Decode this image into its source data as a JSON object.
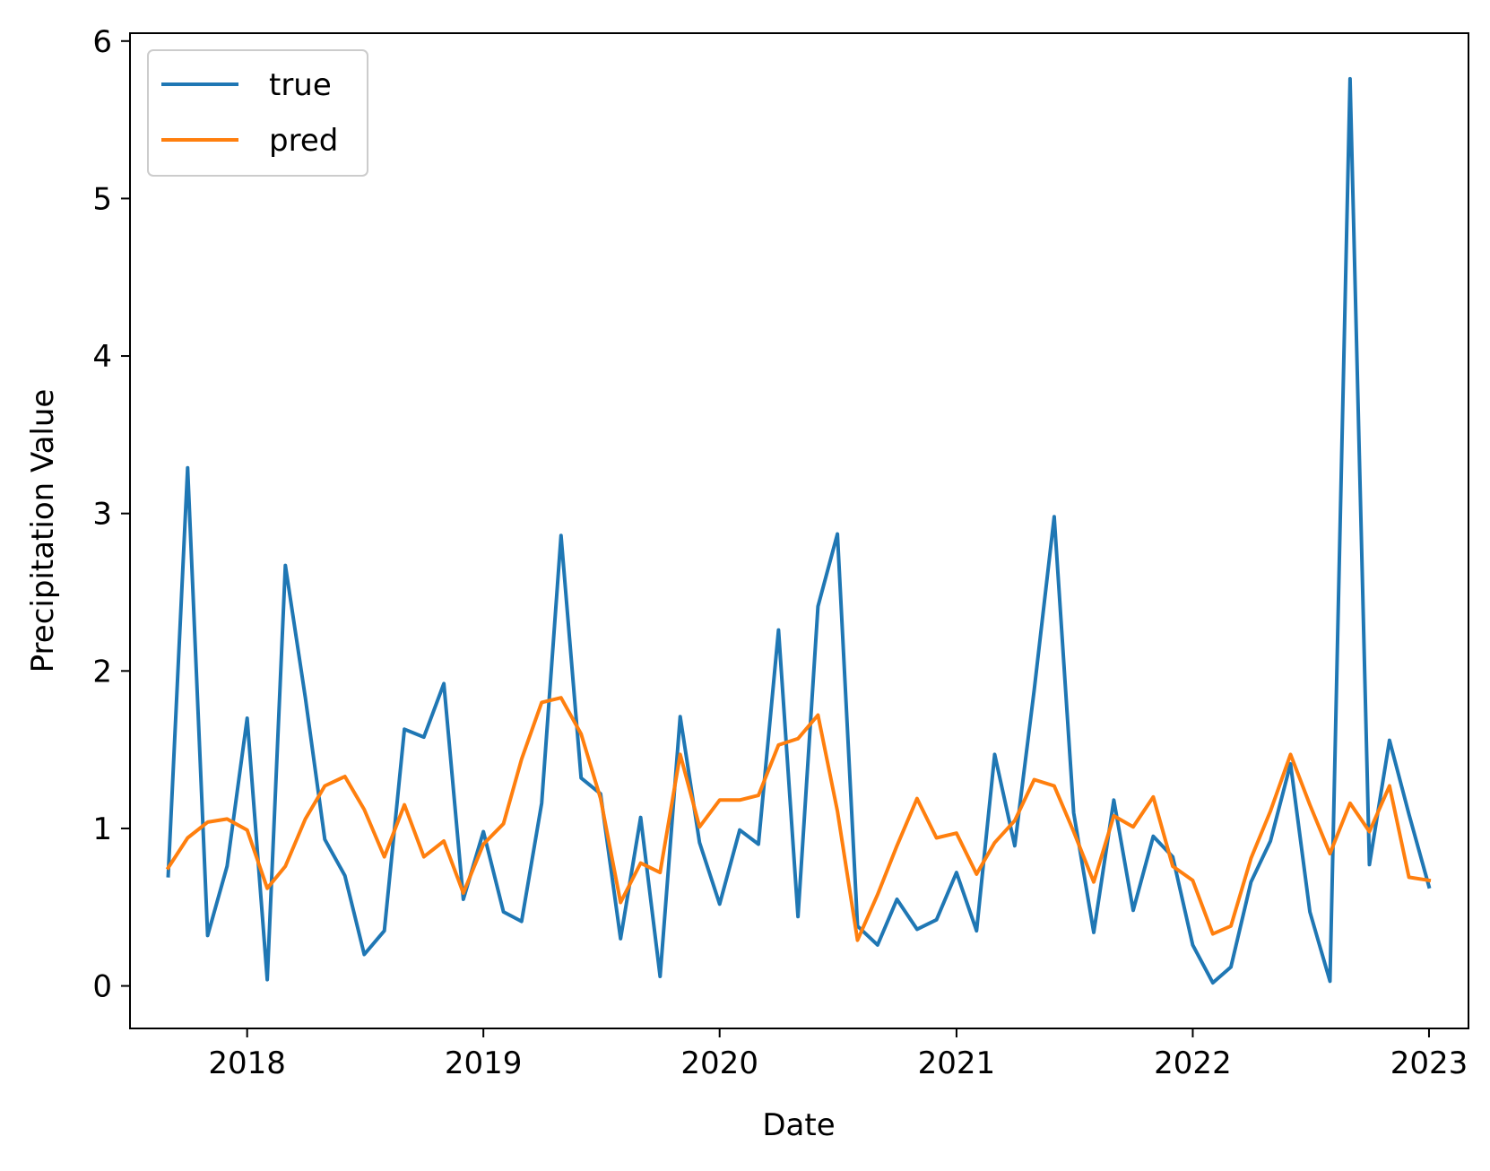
{
  "chart_data": {
    "type": "line",
    "title": "",
    "xlabel": "Date",
    "ylabel": "Precipitation Value",
    "x_ticks": [
      "2018",
      "2019",
      "2020",
      "2021",
      "2022",
      "2023"
    ],
    "y_ticks": [
      "0",
      "1",
      "2",
      "3",
      "4",
      "5",
      "6"
    ],
    "xlim": [
      "2017-07-04",
      "2023-03-03"
    ],
    "ylim": [
      -0.27,
      6.05
    ],
    "grid": false,
    "legend_position": "upper left",
    "x": [
      "2017-09-01",
      "2017-10-01",
      "2017-11-01",
      "2017-12-01",
      "2018-01-01",
      "2018-02-01",
      "2018-03-01",
      "2018-04-01",
      "2018-05-01",
      "2018-06-01",
      "2018-07-01",
      "2018-08-01",
      "2018-09-01",
      "2018-10-01",
      "2018-11-01",
      "2018-12-01",
      "2019-01-01",
      "2019-02-01",
      "2019-03-01",
      "2019-04-01",
      "2019-05-01",
      "2019-06-01",
      "2019-07-01",
      "2019-08-01",
      "2019-09-01",
      "2019-10-01",
      "2019-11-01",
      "2019-12-01",
      "2020-01-01",
      "2020-02-01",
      "2020-03-01",
      "2020-04-01",
      "2020-05-01",
      "2020-06-01",
      "2020-07-01",
      "2020-08-01",
      "2020-09-01",
      "2020-10-01",
      "2020-11-01",
      "2020-12-01",
      "2021-01-01",
      "2021-02-01",
      "2021-03-01",
      "2021-04-01",
      "2021-05-01",
      "2021-06-01",
      "2021-07-01",
      "2021-08-01",
      "2021-09-01",
      "2021-10-01",
      "2021-11-01",
      "2021-12-01",
      "2022-01-01",
      "2022-02-01",
      "2022-03-01",
      "2022-04-01",
      "2022-05-01",
      "2022-06-01",
      "2022-07-01",
      "2022-08-01",
      "2022-09-01",
      "2022-10-01",
      "2022-11-01",
      "2022-12-01",
      "2023-01-01"
    ],
    "series": [
      {
        "name": "true",
        "color": "#1f77b4",
        "values": [
          0.7,
          3.29,
          0.32,
          0.76,
          1.7,
          0.04,
          2.67,
          1.83,
          0.93,
          0.7,
          0.2,
          0.35,
          1.63,
          1.58,
          1.92,
          0.55,
          0.98,
          0.47,
          0.41,
          1.16,
          2.86,
          1.32,
          1.22,
          0.3,
          1.07,
          0.06,
          1.71,
          0.91,
          0.52,
          0.99,
          0.9,
          2.26,
          0.44,
          2.41,
          2.87,
          0.38,
          0.26,
          0.55,
          0.36,
          0.42,
          0.72,
          0.35,
          1.47,
          0.89,
          1.88,
          2.98,
          1.1,
          0.34,
          1.18,
          0.48,
          0.95,
          0.82,
          0.26,
          0.02,
          0.12,
          0.66,
          0.92,
          1.41,
          0.47,
          0.03,
          5.76,
          0.77,
          1.56,
          1.09,
          0.63
        ]
      },
      {
        "name": "pred",
        "color": "#ff7f0e",
        "values": [
          0.75,
          0.94,
          1.04,
          1.06,
          0.99,
          0.62,
          0.76,
          1.06,
          1.27,
          1.33,
          1.12,
          0.82,
          1.15,
          0.82,
          0.92,
          0.59,
          0.9,
          1.03,
          1.44,
          1.8,
          1.83,
          1.6,
          1.19,
          0.53,
          0.78,
          0.72,
          1.47,
          1.01,
          1.18,
          1.18,
          1.21,
          1.53,
          1.57,
          1.72,
          1.11,
          0.29,
          0.58,
          0.89,
          1.19,
          0.94,
          0.97,
          0.71,
          0.91,
          1.05,
          1.31,
          1.27,
          0.98,
          0.66,
          1.08,
          1.01,
          1.2,
          0.76,
          0.67,
          0.33,
          0.38,
          0.81,
          1.11,
          1.47,
          1.15,
          0.84,
          1.16,
          0.98,
          1.27,
          0.69,
          0.67
        ]
      }
    ]
  }
}
